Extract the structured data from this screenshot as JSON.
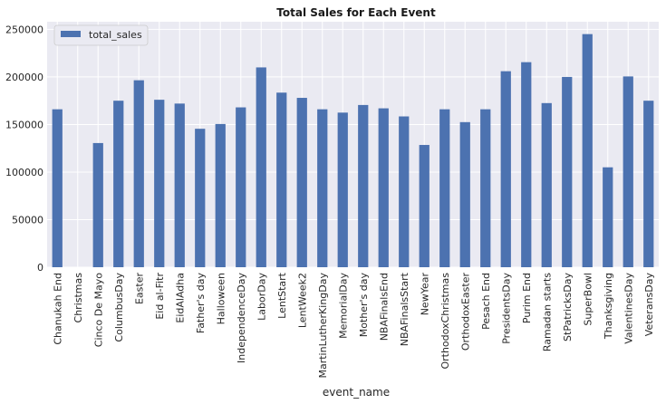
{
  "chart_data": {
    "type": "bar",
    "title": "Total Sales for Each Event",
    "xlabel": "event_name",
    "ylabel": "",
    "ylim": [
      0,
      258000
    ],
    "yticks": [
      0,
      50000,
      100000,
      150000,
      200000,
      250000
    ],
    "grid": true,
    "legend_position": "top-left",
    "colors": {
      "bar": "#4c72b0",
      "plot_bg": "#eaeaf2",
      "grid": "#ffffff"
    },
    "categories": [
      "Chanukah End",
      "Christmas",
      "Cinco De Mayo",
      "ColumbusDay",
      "Easter",
      "Eid al-Fitr",
      "EidAlAdha",
      "Father's day",
      "Halloween",
      "IndependenceDay",
      "LaborDay",
      "LentStart",
      "LentWeek2",
      "MartinLutherKingDay",
      "MemorialDay",
      "Mother's day",
      "NBAFinalsEnd",
      "NBAFinalsStart",
      "NewYear",
      "OrthodoxChristmas",
      "OrthodoxEaster",
      "Pesach End",
      "PresidentsDay",
      "Purim End",
      "Ramadan starts",
      "StPatricksDay",
      "SuperBowl",
      "Thanksgiving",
      "ValentinesDay",
      "VeteransDay"
    ],
    "series": [
      {
        "name": "total_sales",
        "values": [
          166000,
          0,
          130500,
          175000,
          196500,
          176000,
          172000,
          145500,
          150500,
          168000,
          210000,
          183500,
          178000,
          166000,
          162500,
          170500,
          167000,
          158500,
          128500,
          166000,
          152500,
          166000,
          206000,
          215500,
          172500,
          200000,
          245000,
          105000,
          200500,
          175000
        ]
      }
    ]
  }
}
